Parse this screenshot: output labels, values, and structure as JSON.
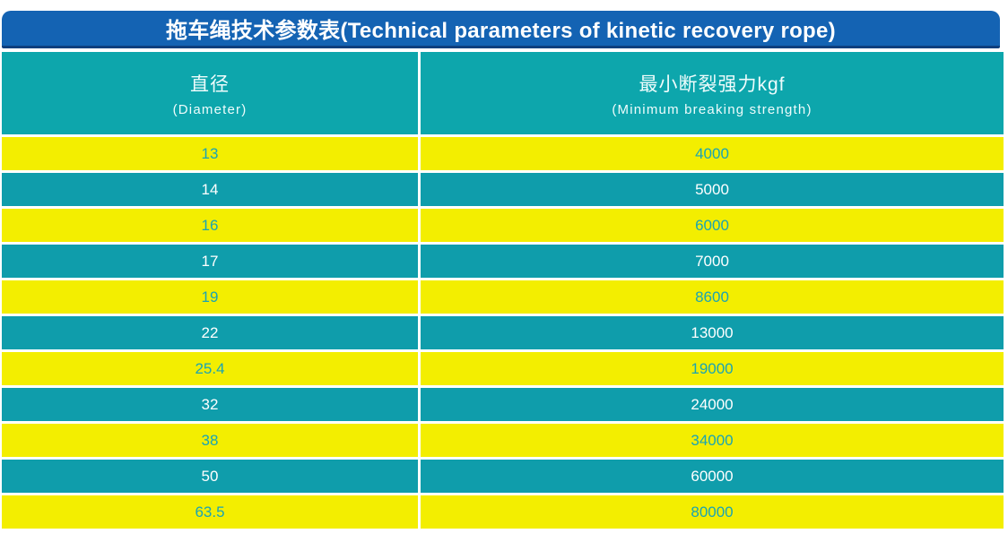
{
  "title": "拖车绳技术参数表(Technical parameters of kinetic recovery rope)",
  "header": {
    "col1_zh": "直径",
    "col1_en": "(Diameter)",
    "col2_zh": "最小断裂强力kgf",
    "col2_en": "(Minimum breaking strength)"
  },
  "rows": [
    {
      "diameter": "13",
      "strength": "4000"
    },
    {
      "diameter": "14",
      "strength": "5000"
    },
    {
      "diameter": "16",
      "strength": "6000"
    },
    {
      "diameter": "17",
      "strength": "7000"
    },
    {
      "diameter": "19",
      "strength": "8600"
    },
    {
      "diameter": "22",
      "strength": "13000"
    },
    {
      "diameter": "25.4",
      "strength": "19000"
    },
    {
      "diameter": "32",
      "strength": "24000"
    },
    {
      "diameter": "38",
      "strength": "34000"
    },
    {
      "diameter": "50",
      "strength": "60000"
    },
    {
      "diameter": "63.5",
      "strength": "80000"
    }
  ],
  "colors": {
    "title_bar": "#1463b3",
    "title_bar_edge": "#0e3f7e",
    "teal": "#0da6ac",
    "teal_row": "#0f9dab",
    "yellow": "#f3ee00",
    "yellow_text": "#1aa4b4",
    "teal_text": "#ffffff"
  },
  "chart_data": {
    "type": "table",
    "title": "拖车绳技术参数表(Technical parameters of kinetic recovery rope)",
    "columns": [
      "直径 (Diameter)",
      "最小断裂强力kgf (Minimum breaking strength)"
    ],
    "rows": [
      [
        "13",
        "4000"
      ],
      [
        "14",
        "5000"
      ],
      [
        "16",
        "6000"
      ],
      [
        "17",
        "7000"
      ],
      [
        "19",
        "8600"
      ],
      [
        "22",
        "13000"
      ],
      [
        "25.4",
        "19000"
      ],
      [
        "32",
        "24000"
      ],
      [
        "38",
        "34000"
      ],
      [
        "50",
        "60000"
      ],
      [
        "63.5",
        "80000"
      ]
    ]
  }
}
